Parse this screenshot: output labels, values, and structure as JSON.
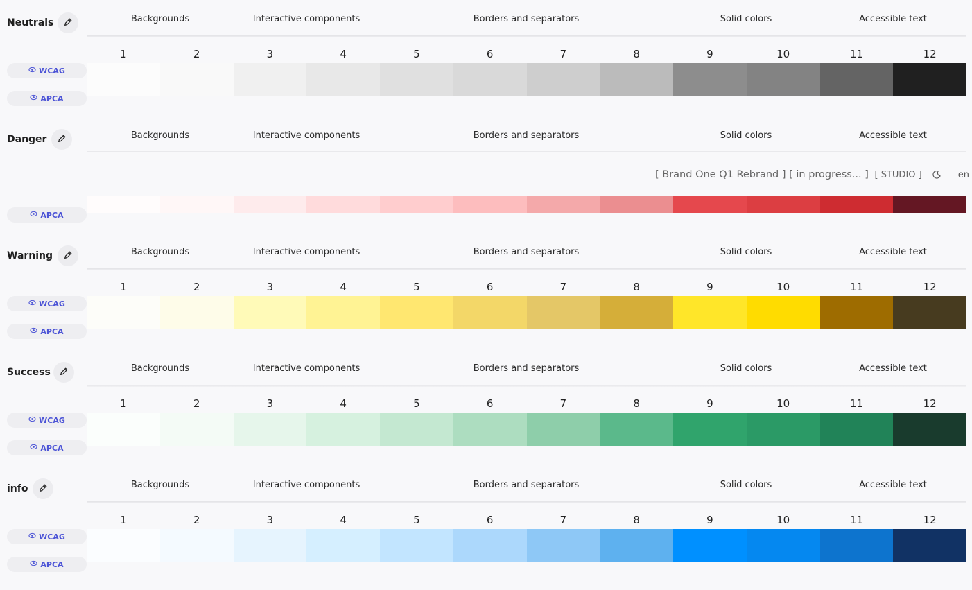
{
  "status_bar": {
    "project": "[ Brand One Q1 Rebrand ]",
    "state": "[ in progress... ]",
    "mode": "[ STUDIO ]",
    "theme_icon": "moon-icon",
    "language": "en"
  },
  "group_labels": [
    "Backgrounds",
    "Interactive components",
    "Borders and separators",
    "Solid colors",
    "Accessible text"
  ],
  "steps": [
    "1",
    "2",
    "3",
    "4",
    "5",
    "6",
    "7",
    "8",
    "9",
    "10",
    "11",
    "12"
  ],
  "pills": {
    "wcag": "WCAG",
    "apca": "APCA",
    "icon": "eye-icon"
  },
  "edit_icon": "pencil-icon",
  "palettes": [
    {
      "name": "Neutrals",
      "colors": [
        "#fcfcfc",
        "#f9f9f9",
        "#f0f0f0",
        "#e8e8e8",
        "#e0e0e0",
        "#d9d9d9",
        "#cecece",
        "#bbbbbb",
        "#8d8d8d",
        "#838383",
        "#646464",
        "#202020"
      ]
    },
    {
      "name": "Danger",
      "colors": [
        "#fffcfc",
        "#fff7f7",
        "#feebec",
        "#ffdbdc",
        "#ffcdce",
        "#fdbdbe",
        "#f4a9aa",
        "#eb8e90",
        "#e5484d",
        "#dc3e42",
        "#ce2c31",
        "#641723"
      ]
    },
    {
      "name": "Warning",
      "colors": [
        "#fdfdf9",
        "#fefce9",
        "#fffab8",
        "#fff394",
        "#ffe770",
        "#f3d768",
        "#e4c767",
        "#d5ae39",
        "#ffe629",
        "#ffdc00",
        "#9e6c00",
        "#473b1f"
      ]
    },
    {
      "name": "Success",
      "colors": [
        "#fbfefc",
        "#f4fbf6",
        "#e6f6eb",
        "#d6f1df",
        "#c4e8d1",
        "#adddc0",
        "#8eceaa",
        "#5bb98b",
        "#30a46c",
        "#2b9a66",
        "#218358",
        "#193b2d"
      ]
    },
    {
      "name": "info",
      "colors": [
        "#fbfdff",
        "#f4faff",
        "#e6f4fe",
        "#d5efff",
        "#c2e5ff",
        "#acd8fc",
        "#8ec8f6",
        "#5eb1ef",
        "#0090ff",
        "#0588f0",
        "#0d74ce",
        "#113264"
      ]
    }
  ]
}
